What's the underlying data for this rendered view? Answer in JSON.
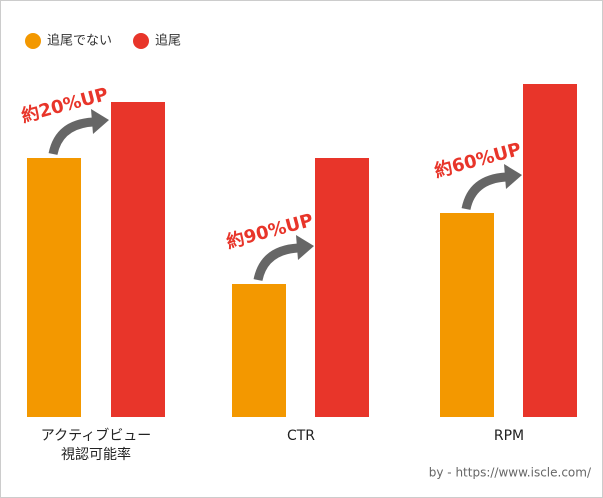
{
  "chart_data": {
    "type": "bar",
    "categories": [
      "アクティブビュー\n視認可能率",
      "CTR",
      "RPM"
    ],
    "series": [
      {
        "name": "追尾でない",
        "color": "#f39800",
        "values": [
          259,
          133,
          204
        ]
      },
      {
        "name": "追尾",
        "color": "#e8352a",
        "values": [
          315,
          259,
          333
        ]
      }
    ],
    "ylim": [
      0,
      340
    ],
    "annotations": [
      "約20%UP",
      "約90%UP",
      "約60%UP"
    ],
    "source": "by - https://www.iscle.com/"
  }
}
